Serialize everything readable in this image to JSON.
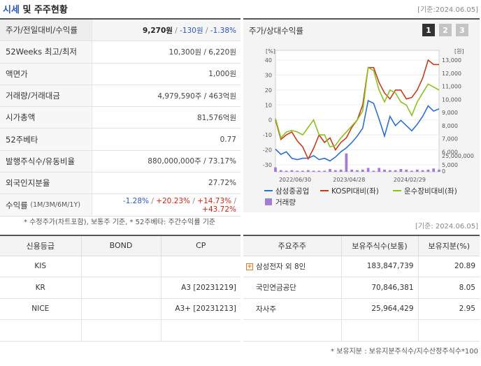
{
  "header": {
    "title_accent": "시세",
    "title_rest": " 및 주주현황",
    "base_date": "[기준:2024.06.05]"
  },
  "price_table": {
    "rows": [
      {
        "label": "주가/전일대비/수익률",
        "price": "9,270원",
        "change": "-130원",
        "rate": "-1.38%"
      },
      {
        "label": "52Weeks 최고/최저",
        "value": "10,300원 / 6,220원"
      },
      {
        "label": "액면가",
        "value": "1,000원"
      },
      {
        "label": "거래량/거래대금",
        "value": "4,979,590주 / 463억원"
      },
      {
        "label": "시가총액",
        "value": "81,576억원"
      },
      {
        "label": "52주베타",
        "value": "0.77"
      },
      {
        "label": "발행주식수/유동비율",
        "value": "880,000,000주 / 73.17%"
      },
      {
        "label": "외국인지분율",
        "value": "27.72%"
      }
    ],
    "returns": {
      "label": "수익률",
      "periods": "(1M/3M/6M/1Y)",
      "values": [
        "-1.28%",
        "+20.23%",
        "+14.73%",
        "+43.72%"
      ]
    }
  },
  "note_left": "* 수정주가(차트포함), 보통주 기준, * 52주베타: 주간수익률 기준",
  "chart_panel": {
    "title": "주가/상대수익률",
    "pages": [
      "1",
      "2",
      "3"
    ],
    "active_page": "1"
  },
  "chart_data": {
    "type": "line",
    "left_unit": "[%]",
    "right_unit": "[원]",
    "left_ticks": [
      40,
      30,
      20,
      10,
      0,
      -10,
      -20,
      -30
    ],
    "right_ticks": [
      "13,000",
      "12,000",
      "11,000",
      "10,000",
      "9,000",
      "8,000",
      "7,000",
      "6,000",
      "5,000"
    ],
    "volume_ticks": [
      "25,000,000",
      "0"
    ],
    "x_labels": [
      "2022/06/30",
      "2023/04/28",
      "2024/02/29"
    ],
    "ylim_left": [
      -30,
      40
    ],
    "ylim_right": [
      5000,
      13000
    ],
    "series": [
      {
        "name": "삼성중공업",
        "axis": "right",
        "color": "#2e6fcf",
        "values": [
          6200,
          5800,
          6000,
          5500,
          5400,
          5500,
          5500,
          5700,
          5400,
          5500,
          5300,
          5600,
          6000,
          6300,
          6700,
          7200,
          7800,
          9900,
          9700,
          8500,
          7200,
          8700,
          8000,
          8400,
          8000,
          7600,
          8100,
          8700,
          9500,
          9100,
          9270
        ]
      },
      {
        "name": "KOSPI대비(좌)",
        "axis": "left",
        "color": "#c8391c",
        "values": [
          0,
          -13,
          -10,
          -8,
          -14,
          -18,
          -26,
          -19,
          -10,
          -15,
          -12,
          -20,
          -15,
          -12,
          -5,
          0,
          10,
          35,
          35,
          25,
          18,
          14,
          20,
          20,
          14,
          15,
          20,
          28,
          40,
          37,
          37
        ]
      },
      {
        "name": "운수장비대비(좌)",
        "axis": "left",
        "color": "#8cc121",
        "values": [
          1,
          -12,
          -8,
          -7,
          -8,
          -10,
          -5,
          0,
          -10,
          -10,
          -18,
          -17,
          -12,
          -8,
          -4,
          0,
          6,
          35,
          33,
          20,
          12,
          20,
          18,
          12,
          10,
          3,
          12,
          18,
          24,
          22,
          20
        ]
      }
    ],
    "volume": {
      "name": "거래량",
      "color": "#a57bd9",
      "values": [
        8,
        3,
        2,
        3,
        2,
        2,
        3,
        2,
        2,
        2,
        5,
        3,
        4,
        33,
        4,
        3,
        4,
        7,
        2,
        7,
        4,
        3,
        3,
        5,
        4,
        2,
        4,
        3,
        4,
        6,
        4
      ]
    },
    "legend": [
      {
        "name": "삼성중공업",
        "kind": "line",
        "color": "#2e6fcf"
      },
      {
        "name": "KOSPI대비(좌)",
        "kind": "line",
        "color": "#c8391c"
      },
      {
        "name": "운수장비대비(좌)",
        "kind": "line",
        "color": "#8cc121"
      },
      {
        "name": "거래량",
        "kind": "box",
        "color": "#a57bd9"
      }
    ]
  },
  "base_date_2": "[기준: 2024.06.05]",
  "credit_table": {
    "headers": [
      "신용등급",
      "BOND",
      "CP"
    ],
    "rows": [
      {
        "agency": "KIS",
        "bond": "",
        "cp": ""
      },
      {
        "agency": "KR",
        "bond": "",
        "cp": "A3 [20231219]"
      },
      {
        "agency": "NICE",
        "bond": "",
        "cp": "A3+ [20231213]"
      },
      {
        "agency": "",
        "bond": "",
        "cp": ""
      }
    ]
  },
  "shareholder_table": {
    "headers": [
      "주요주주",
      "보유주식수(보통)",
      "보유지분(%)"
    ],
    "rows": [
      {
        "name": "삼성전자 외 8인",
        "shares": "183,847,739",
        "pct": "20.89",
        "expandable": true
      },
      {
        "name": "국민연금공단",
        "shares": "70,846,381",
        "pct": "8.05",
        "expandable": false
      },
      {
        "name": "자사주",
        "shares": "25,964,429",
        "pct": "2.95",
        "expandable": false
      },
      {
        "name": "",
        "shares": "",
        "pct": "",
        "expandable": false
      }
    ]
  },
  "note_right": "* 보유지분 : 보유지분주식수/지수산정주식수*100"
}
